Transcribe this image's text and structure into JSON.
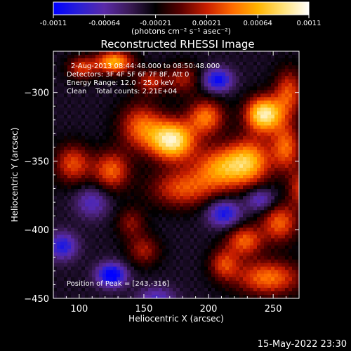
{
  "colorbar": {
    "ticks": [
      "-0.0011",
      "-0.00064",
      "-0.00021",
      "0.00021",
      "0.00064",
      "0.0011"
    ],
    "units_label": "(photons cm⁻² s⁻¹ asec⁻²)",
    "stops": [
      "#0000ff",
      "#2a1fd6",
      "#5a2aa8",
      "#3a1a55",
      "#000000",
      "#5a0000",
      "#c81e00",
      "#ff6a00",
      "#ffb400",
      "#ffe27a",
      "#ffffff"
    ]
  },
  "annotations": {
    "time_range": "2-Aug-2013 08:44:48.000 to 08:50:48.000",
    "detectors": "Detectors: 3F 4F 5F 6F 7F 8F, Att 0",
    "energy": "Energy Range: 12.0 - 25.0 keV",
    "clean": "Clean    Total counts: 2.21E+04",
    "peak": "Position of Peak = [243,-316]"
  },
  "footer": {
    "timestamp": "15-May-2022 23:30"
  },
  "chart_data": {
    "type": "heatmap",
    "title": "Reconstructed RHESSI Image",
    "xlabel": "Heliocentric X (arcsec)",
    "ylabel": "Heliocentric Y (arcsec)",
    "xlim": [
      80,
      270
    ],
    "ylim": [
      -450,
      -270
    ],
    "xticks": [
      100,
      150,
      200,
      250
    ],
    "yticks": [
      -300,
      -350,
      -400,
      -450
    ],
    "color_range": [
      -0.0011,
      0.0011
    ],
    "sources": [
      {
        "x": 172,
        "y": -335,
        "amp": 1.0,
        "sx": 12,
        "sy": 10
      },
      {
        "x": 243,
        "y": -316,
        "amp": 1.0,
        "sx": 10,
        "sy": 9
      },
      {
        "x": 148,
        "y": -325,
        "amp": 0.55,
        "sx": 12,
        "sy": 12
      },
      {
        "x": 198,
        "y": -318,
        "amp": 0.6,
        "sx": 10,
        "sy": 9
      },
      {
        "x": 210,
        "y": -355,
        "amp": 0.65,
        "sx": 15,
        "sy": 11
      },
      {
        "x": 125,
        "y": -357,
        "amp": 0.55,
        "sx": 10,
        "sy": 10
      },
      {
        "x": 95,
        "y": -352,
        "amp": 0.5,
        "sx": 10,
        "sy": 10
      },
      {
        "x": 180,
        "y": -370,
        "amp": 0.5,
        "sx": 18,
        "sy": 10
      },
      {
        "x": 232,
        "y": -350,
        "amp": 0.65,
        "sx": 12,
        "sy": 12
      },
      {
        "x": 260,
        "y": -340,
        "amp": 0.55,
        "sx": 8,
        "sy": 12
      },
      {
        "x": 262,
        "y": -300,
        "amp": 0.5,
        "sx": 8,
        "sy": 12
      },
      {
        "x": 127,
        "y": -278,
        "amp": 0.75,
        "sx": 10,
        "sy": 6
      },
      {
        "x": 102,
        "y": -282,
        "amp": 0.45,
        "sx": 8,
        "sy": 6
      },
      {
        "x": 155,
        "y": -292,
        "amp": 0.4,
        "sx": 8,
        "sy": 6
      },
      {
        "x": 228,
        "y": -408,
        "amp": 0.55,
        "sx": 10,
        "sy": 8
      },
      {
        "x": 255,
        "y": -395,
        "amp": 0.55,
        "sx": 10,
        "sy": 10
      },
      {
        "x": 246,
        "y": -435,
        "amp": 0.6,
        "sx": 18,
        "sy": 9
      },
      {
        "x": 212,
        "y": -425,
        "amp": 0.45,
        "sx": 8,
        "sy": 8
      },
      {
        "x": 150,
        "y": -415,
        "amp": 0.35,
        "sx": 9,
        "sy": 8
      },
      {
        "x": 140,
        "y": -395,
        "amp": 0.3,
        "sx": 8,
        "sy": 8
      },
      {
        "x": 180,
        "y": -290,
        "amp": 0.35,
        "sx": 10,
        "sy": 8
      },
      {
        "x": 270,
        "y": -370,
        "amp": 0.4,
        "sx": 6,
        "sy": 10
      },
      {
        "x": 125,
        "y": -433,
        "amp": -0.7,
        "sx": 8,
        "sy": 6
      },
      {
        "x": 207,
        "y": -291,
        "amp": -0.6,
        "sx": 8,
        "sy": 6
      },
      {
        "x": 212,
        "y": -388,
        "amp": -0.55,
        "sx": 9,
        "sy": 7
      },
      {
        "x": 87,
        "y": -412,
        "amp": -0.5,
        "sx": 8,
        "sy": 7
      },
      {
        "x": 240,
        "y": -378,
        "amp": -0.4,
        "sx": 8,
        "sy": 6
      },
      {
        "x": 110,
        "y": -380,
        "amp": -0.35,
        "sx": 9,
        "sy": 8
      },
      {
        "x": 160,
        "y": -450,
        "amp": -0.35,
        "sx": 10,
        "sy": 6
      }
    ]
  }
}
